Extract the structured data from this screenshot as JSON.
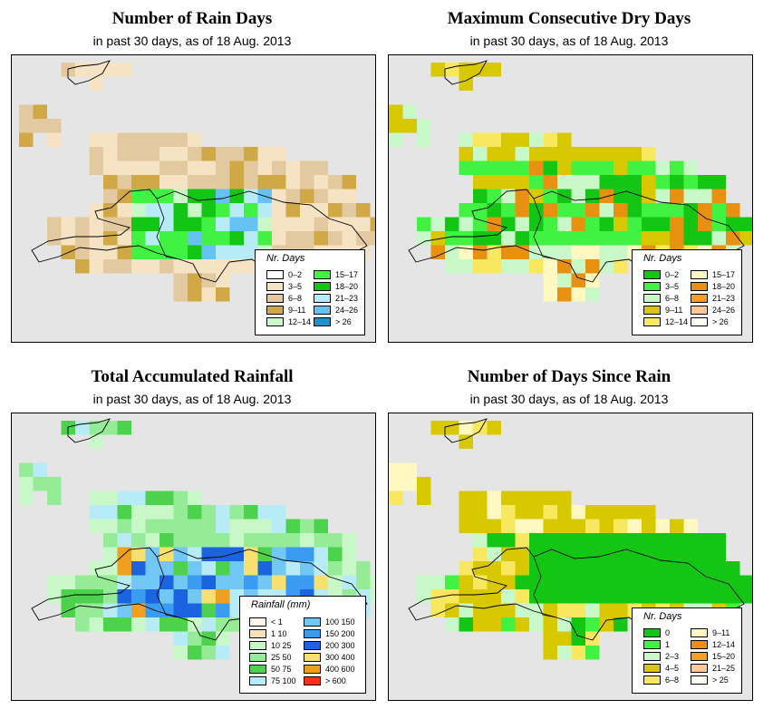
{
  "panels": [
    {
      "title": "Number of Rain Days",
      "subtitle": "in past 30 days, as of  18 Aug. 2013",
      "legend": {
        "title": "Nr. Days",
        "items": [
          {
            "label": "0–2",
            "color": "#ffffff"
          },
          {
            "label": "3–5",
            "color": "#f5e3c4"
          },
          {
            "label": "6–8",
            "color": "#e2c9a0"
          },
          {
            "label": "9–11",
            "color": "#d0a846"
          },
          {
            "label": "12–14",
            "color": "#c8f7c8"
          },
          {
            "label": "15–17",
            "color": "#42f242"
          },
          {
            "label": "18–20",
            "color": "#13c613"
          },
          {
            "label": "21–23",
            "color": "#b7ecf6"
          },
          {
            "label": "24–26",
            "color": "#66c2f2"
          },
          {
            "label": "> 26",
            "color": "#1e90d0"
          }
        ]
      }
    },
    {
      "title": "Maximum Consecutive Dry Days",
      "subtitle": "in past 30 days, as of  18 Aug. 2013",
      "legend": {
        "title": "Nr. Days",
        "items": [
          {
            "label": "0–2",
            "color": "#13c613"
          },
          {
            "label": "3–5",
            "color": "#42f242"
          },
          {
            "label": "6–8",
            "color": "#c8f7c8"
          },
          {
            "label": "9–11",
            "color": "#d8c800"
          },
          {
            "label": "12–14",
            "color": "#f8e860"
          },
          {
            "label": "15–17",
            "color": "#fff8c0"
          },
          {
            "label": "18–20",
            "color": "#e89010"
          },
          {
            "label": "21–23",
            "color": "#f5a020"
          },
          {
            "label": "24–26",
            "color": "#ffc898"
          },
          {
            "label": "> 26",
            "color": "#fffbf0"
          }
        ]
      }
    },
    {
      "title": "Total Accumulated Rainfall",
      "subtitle": "in past 30 days, as of  18 Aug. 2013",
      "legend": {
        "title": "Rainfall (mm)",
        "items": [
          {
            "label": "< 1",
            "color": "#fff8ee"
          },
          {
            "label": "1   10",
            "color": "#f8e0b8"
          },
          {
            "label": "10   25",
            "color": "#c8f7c8"
          },
          {
            "label": "25   50",
            "color": "#96ec96"
          },
          {
            "label": "50   75",
            "color": "#4cd24c"
          },
          {
            "label": "75   100",
            "color": "#b7ecf6"
          },
          {
            "label": "100   150",
            "color": "#72c8f5"
          },
          {
            "label": "150   200",
            "color": "#3a9cf0"
          },
          {
            "label": "200   300",
            "color": "#1a64e0"
          },
          {
            "label": "300   400",
            "color": "#f8e070"
          },
          {
            "label": "400   600",
            "color": "#f0a020"
          },
          {
            "label": "> 600",
            "color": "#ff3010"
          }
        ]
      }
    },
    {
      "title": "Number of Days Since Rain",
      "subtitle": "in past 30 days, as of  18 Aug. 2013",
      "legend": {
        "title": "Nr. Days",
        "items": [
          {
            "label": "0",
            "color": "#13c613"
          },
          {
            "label": "1",
            "color": "#42f242"
          },
          {
            "label": "2–3",
            "color": "#c8f7c8"
          },
          {
            "label": "4–5",
            "color": "#d8c800"
          },
          {
            "label": "6–8",
            "color": "#f8e860"
          },
          {
            "label": "9–11",
            "color": "#fff8c0"
          },
          {
            "label": "12–14",
            "color": "#e89010"
          },
          {
            "label": "15–20",
            "color": "#f5a020"
          },
          {
            "label": "21–25",
            "color": "#ffc898"
          },
          {
            "label": "> 25",
            "color": "#fffbf0"
          }
        ]
      }
    }
  ]
}
